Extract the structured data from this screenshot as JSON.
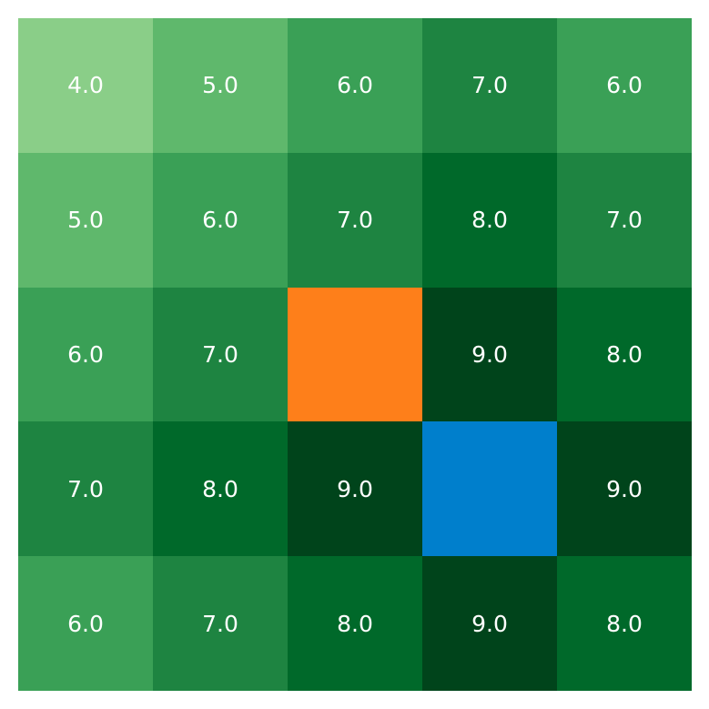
{
  "grid": {
    "rows": 5,
    "cols": 5,
    "cells": [
      [
        {
          "label": "4.0",
          "color": "#8ace88"
        },
        {
          "label": "5.0",
          "color": "#5fb86c"
        },
        {
          "label": "6.0",
          "color": "#3aa056"
        },
        {
          "label": "7.0",
          "color": "#1e8441"
        },
        {
          "label": "6.0",
          "color": "#3aa056"
        }
      ],
      [
        {
          "label": "5.0",
          "color": "#5fb86c"
        },
        {
          "label": "6.0",
          "color": "#3aa056"
        },
        {
          "label": "7.0",
          "color": "#1e8441"
        },
        {
          "label": "8.0",
          "color": "#00692a"
        },
        {
          "label": "7.0",
          "color": "#1e8441"
        }
      ],
      [
        {
          "label": "6.0",
          "color": "#3aa056"
        },
        {
          "label": "7.0",
          "color": "#1e8441"
        },
        {
          "label": "",
          "color": "#fe7f1a",
          "marker": "agent"
        },
        {
          "label": "9.0",
          "color": "#00441b"
        },
        {
          "label": "8.0",
          "color": "#00692a"
        }
      ],
      [
        {
          "label": "7.0",
          "color": "#1e8441"
        },
        {
          "label": "8.0",
          "color": "#00692a"
        },
        {
          "label": "9.0",
          "color": "#00441b"
        },
        {
          "label": "",
          "color": "#007fcc",
          "marker": "goal"
        },
        {
          "label": "9.0",
          "color": "#00441b"
        }
      ],
      [
        {
          "label": "6.0",
          "color": "#3aa056"
        },
        {
          "label": "7.0",
          "color": "#1e8441"
        },
        {
          "label": "8.0",
          "color": "#00692a"
        },
        {
          "label": "9.0",
          "color": "#00441b"
        },
        {
          "label": "8.0",
          "color": "#00692a"
        }
      ]
    ]
  },
  "chart_data": {
    "type": "heatmap",
    "title": "",
    "xlabel": "",
    "ylabel": "",
    "values": [
      [
        4.0,
        5.0,
        6.0,
        7.0,
        6.0
      ],
      [
        5.0,
        6.0,
        7.0,
        8.0,
        7.0
      ],
      [
        6.0,
        7.0,
        null,
        9.0,
        8.0
      ],
      [
        7.0,
        8.0,
        9.0,
        null,
        9.0
      ],
      [
        6.0,
        7.0,
        8.0,
        9.0,
        8.0
      ]
    ],
    "colormap": "Greens",
    "special_cells": [
      {
        "row": 2,
        "col": 2,
        "color": "#fe7f1a"
      },
      {
        "row": 3,
        "col": 3,
        "color": "#007fcc"
      }
    ]
  }
}
